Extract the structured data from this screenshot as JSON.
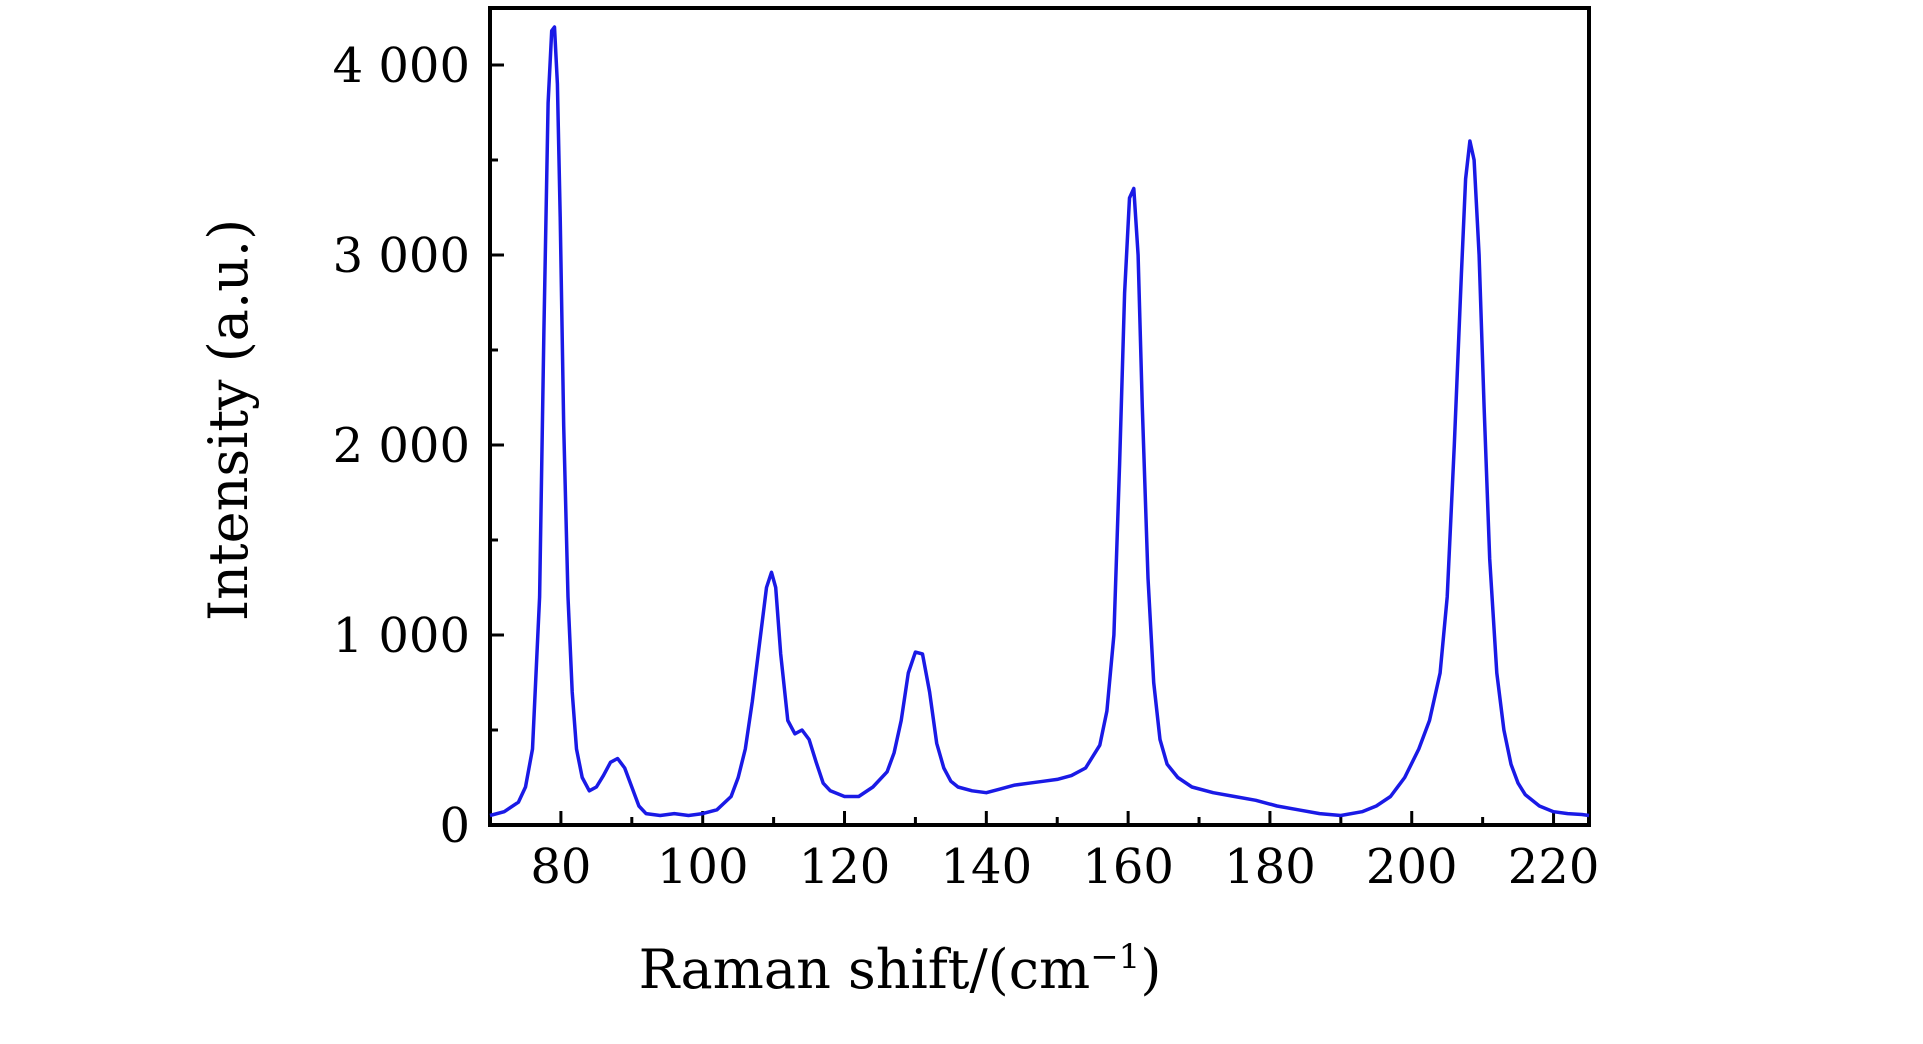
{
  "chart_data": {
    "type": "line",
    "title": "",
    "xlabel": "Raman shift/(cm",
    "xlabel_sup": "−1",
    "xlabel_close": ")",
    "ylabel": "Intensity (a.u.)",
    "xlim": [
      70,
      225
    ],
    "ylim": [
      0,
      4300
    ],
    "x_ticks": [
      80,
      100,
      120,
      140,
      160,
      180,
      200,
      220
    ],
    "x_tick_labels": [
      "80",
      "100",
      "120",
      "140",
      "160",
      "180",
      "200",
      "220"
    ],
    "y_ticks": [
      0,
      1000,
      2000,
      3000,
      4000
    ],
    "y_tick_labels": [
      "0",
      "1 000",
      "2 000",
      "3 000",
      "4 000"
    ],
    "grid": false,
    "line_color": "#1a1ae6",
    "series": [
      {
        "x": [
          70,
          72,
          74,
          75,
          76,
          77,
          77.6,
          78.2,
          78.7,
          79.1,
          79.5,
          79.9,
          80.4,
          81,
          81.6,
          82.2,
          83,
          84,
          85,
          86,
          87,
          88,
          89,
          90,
          91,
          92,
          94,
          96,
          98,
          100,
          102,
          104,
          105,
          106,
          107,
          108,
          109,
          109.7,
          110.3,
          111,
          112,
          113,
          114,
          115,
          116,
          117,
          118,
          120,
          122,
          124,
          126,
          127,
          128,
          129,
          130,
          131,
          132,
          133,
          134,
          135,
          136,
          138,
          140,
          142,
          144,
          146,
          148,
          150,
          152,
          154,
          156,
          157,
          158,
          158.8,
          159.5,
          160.2,
          160.8,
          161.4,
          162,
          162.8,
          163.6,
          164.5,
          165.5,
          167,
          169,
          172,
          175,
          178,
          181,
          184,
          187,
          190,
          193,
          195,
          197,
          199,
          201,
          202.5,
          204,
          205,
          206,
          207,
          207.6,
          208.2,
          208.8,
          209.5,
          210.2,
          211,
          212,
          213,
          214,
          215,
          216,
          218,
          220,
          222,
          224,
          225
        ],
        "y": [
          50,
          70,
          120,
          200,
          400,
          1200,
          2600,
          3800,
          4180,
          4200,
          3900,
          3200,
          2100,
          1200,
          700,
          400,
          250,
          180,
          200,
          260,
          330,
          350,
          300,
          200,
          100,
          60,
          50,
          60,
          50,
          60,
          80,
          150,
          250,
          400,
          650,
          950,
          1250,
          1330,
          1250,
          900,
          550,
          480,
          500,
          450,
          330,
          220,
          180,
          150,
          150,
          200,
          280,
          380,
          550,
          800,
          910,
          900,
          700,
          430,
          300,
          230,
          200,
          180,
          170,
          190,
          210,
          220,
          230,
          240,
          260,
          300,
          420,
          600,
          1000,
          1900,
          2800,
          3300,
          3350,
          3000,
          2200,
          1300,
          750,
          450,
          320,
          250,
          200,
          170,
          150,
          130,
          100,
          80,
          60,
          50,
          70,
          100,
          150,
          250,
          400,
          550,
          800,
          1200,
          2000,
          2900,
          3400,
          3600,
          3500,
          3000,
          2200,
          1400,
          800,
          500,
          320,
          220,
          160,
          100,
          70,
          60,
          55,
          50
        ]
      }
    ]
  }
}
